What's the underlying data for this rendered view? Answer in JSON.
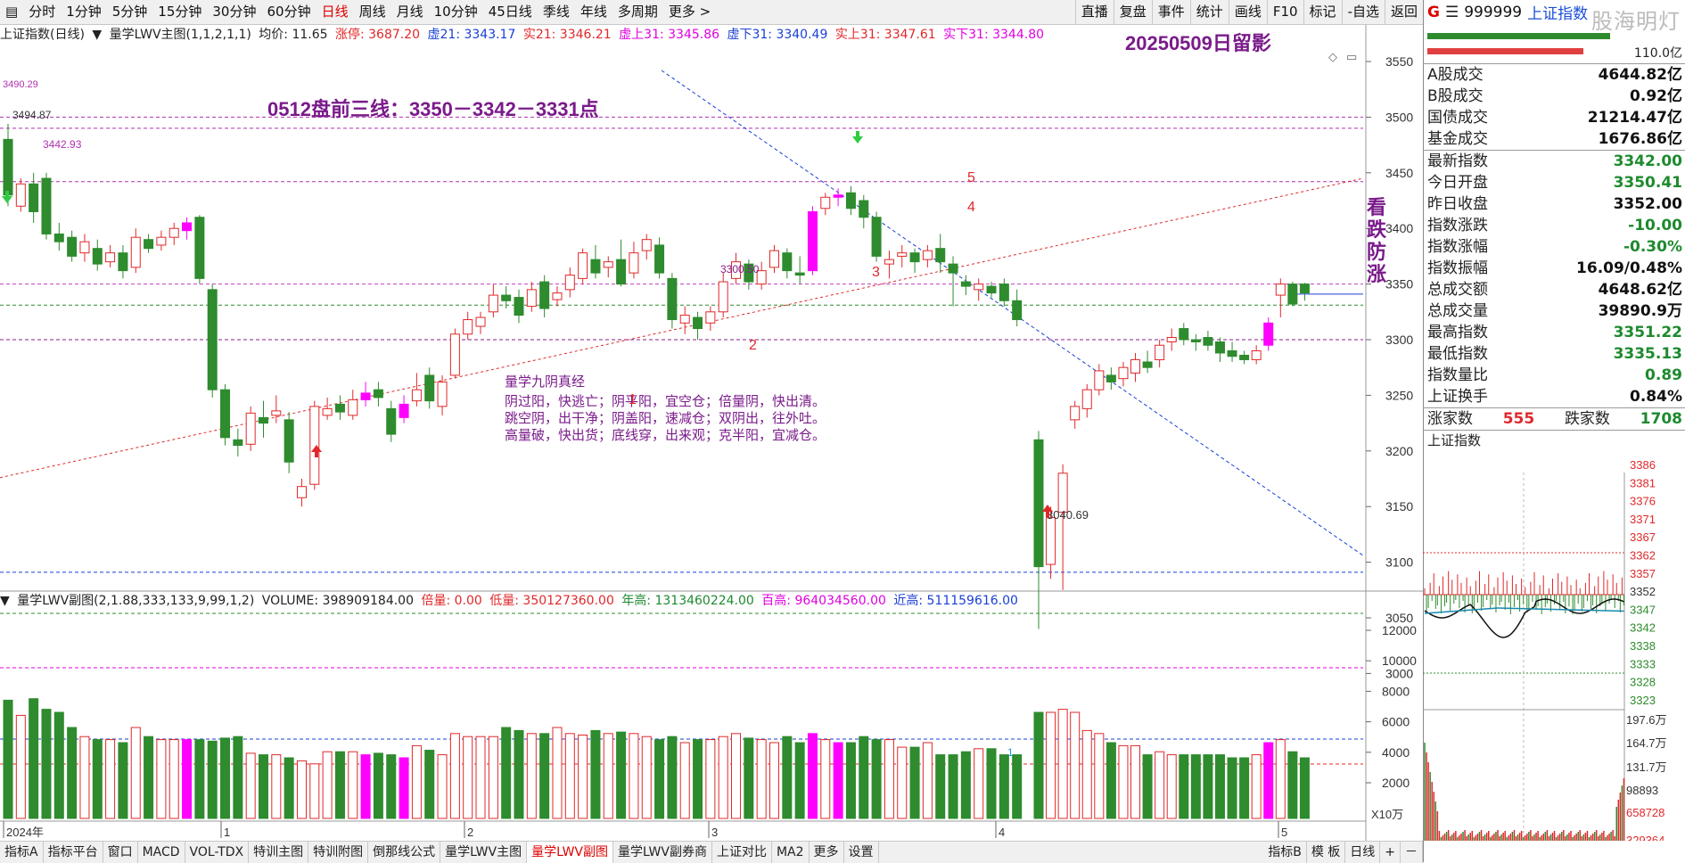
{
  "toolbar": {
    "items": [
      "分时",
      "1分钟",
      "5分钟",
      "15分钟",
      "30分钟",
      "60分钟",
      "日线",
      "周线",
      "月线",
      "10分钟",
      "45日线",
      "季线",
      "年线",
      "多周期",
      "更多 >"
    ],
    "active_index": 6,
    "right_items": [
      "直播",
      "复盘",
      "事件",
      "统计",
      "画线",
      "F10",
      "标记",
      "-自选",
      "返回"
    ]
  },
  "info": {
    "title": "上证指数(日线)",
    "indicator": "量学LWV主图(1,1,2,1,1)",
    "junjia": "均价: 11.65",
    "zhangting": "涨停: 3687.20",
    "xu21": "虚21: 3343.17",
    "shi21": "实21: 3346.21",
    "xushang31": "虚上31: 3345.86",
    "xuxia31": "虚下31: 3340.49",
    "shishang31": "实上31: 3347.61",
    "shixia31": "实下31: 3344.80"
  },
  "annotations": {
    "date_title": "20250509日留影",
    "three_lines": "0512盘前三线：3350－3342－3331点",
    "side_note": [
      "看",
      "跌",
      "防",
      "涨"
    ],
    "poem_title": "量学九阴真经",
    "poem_lines": [
      "阴过阳，快逃亡；阴平阳，宜空仓；倍量阴，快出清。",
      "跳空阴，出干净；阴盖阳，速减仓；双阴出，往外吐。",
      "高量破，快出货；底线穿，出来观；克半阳，宜减仓。"
    ],
    "marks": [
      "1",
      "2",
      "3",
      "4",
      "5"
    ],
    "high_label": "3494.87",
    "level_label": "3490.29",
    "label_3442": "3442.93",
    "label_3300": "3300.50",
    "low_label": "3040.69",
    "vol_mark": "1"
  },
  "price_axis": [
    "3550",
    "3500",
    "3450",
    "3400",
    "3350",
    "3300",
    "3250",
    "3200",
    "3150",
    "3100",
    "3050",
    "3000"
  ],
  "volume_axis": [
    "12000",
    "10000",
    "8000",
    "6000",
    "4000",
    "2000"
  ],
  "volume_unit": "X10万",
  "time_axis": [
    "2024年",
    "1",
    "2",
    "3",
    "4",
    "5"
  ],
  "sub_info": {
    "indicator": "量学LWV副图(2,1.88,333,133,9,99,1,2)",
    "volume": "VOLUME: 398909184.00",
    "beiliang": "倍量: 0.00",
    "diliang": "低量: 350127360.00",
    "niangao": "年高: 1313460224.00",
    "baigao": "百高: 964034560.00",
    "jingao": "近高: 511159616.00"
  },
  "bottom_tabs": [
    "指标A",
    "指标平台",
    "窗口",
    "MACD",
    "VOL-TDX",
    "特训主图",
    "特训附图",
    "倒那线公式",
    "量学LWV主图",
    "量学LWV副图",
    "量学LWV副券商",
    "上证对比",
    "MA2",
    "更多",
    "设置"
  ],
  "bottom_active_index": 9,
  "bottom_right": [
    "指标B",
    "模 板",
    "日线",
    "+",
    "－"
  ],
  "panel": {
    "badge": "G",
    "code": "999999",
    "name": "上证指数",
    "watermark": "股海明灯",
    "ratio": "110.0亿",
    "stats": [
      {
        "label": "A股成交",
        "value": "4644.82亿",
        "color": "#111"
      },
      {
        "label": "B股成交",
        "value": "0.92亿",
        "color": "#111"
      },
      {
        "label": "国债成交",
        "value": "21214.47亿",
        "color": "#111"
      },
      {
        "label": "基金成交",
        "value": "1676.86亿",
        "color": "#111"
      }
    ],
    "quotes": [
      {
        "label": "最新指数",
        "value": "3342.00",
        "color": "#1e8a2e"
      },
      {
        "label": "今日开盘",
        "value": "3350.41",
        "color": "#1e8a2e"
      },
      {
        "label": "昨日收盘",
        "value": "3352.00",
        "color": "#111"
      },
      {
        "label": "指数涨跌",
        "value": "-10.00",
        "color": "#1e8a2e"
      },
      {
        "label": "指数涨幅",
        "value": "-0.30%",
        "color": "#1e8a2e"
      },
      {
        "label": "指数振幅",
        "value": "16.09/0.48%",
        "color": "#111"
      },
      {
        "label": "总成交额",
        "value": "4648.62亿",
        "color": "#111"
      },
      {
        "label": "总成交量",
        "value": "39890.9万",
        "color": "#111"
      },
      {
        "label": "最高指数",
        "value": "3351.22",
        "color": "#1e8a2e"
      },
      {
        "label": "最低指数",
        "value": "3335.13",
        "color": "#1e8a2e"
      },
      {
        "label": "指数量比",
        "value": "0.89",
        "color": "#1e8a2e"
      },
      {
        "label": "上证换手",
        "value": "0.84%",
        "color": "#111"
      }
    ],
    "breadth": {
      "up_label": "涨家数",
      "up": "555",
      "down_label": "跌家数",
      "down": "1708"
    },
    "mini_title": "上证指数",
    "mini_price_axis": [
      "3386",
      "3381",
      "3376",
      "3371",
      "3367",
      "3362",
      "3357",
      "3352",
      "3347",
      "3342",
      "3338",
      "3333",
      "3328",
      "3323"
    ],
    "mini_vol_axis": [
      "197.6万",
      "164.7万",
      "131.7万",
      "98893",
      "658728",
      "329364"
    ]
  },
  "colors": {
    "up": "#e0282a",
    "down": "#2e8b2e",
    "special": "#ff00ff",
    "support": "#1a3fd6",
    "trend": "#e0282a"
  }
}
